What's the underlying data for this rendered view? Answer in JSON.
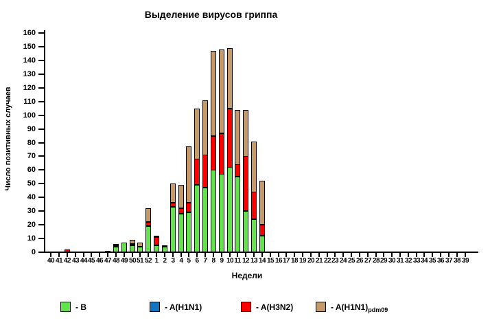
{
  "chart_data": {
    "type": "bar",
    "stacked": true,
    "title": "Выделение вирусов гриппа",
    "xlabel": "Недели",
    "ylabel": "Число позитивных случаев",
    "ylim": [
      0,
      160
    ],
    "ytick_step": 10,
    "grid": false,
    "legend_position": "bottom",
    "categories": [
      "40",
      "41",
      "42",
      "43",
      "44",
      "45",
      "46",
      "47",
      "48",
      "49",
      "50",
      "51",
      "52",
      "1",
      "2",
      "3",
      "4",
      "5",
      "6",
      "7",
      "8",
      "9",
      "10",
      "11",
      "12",
      "13",
      "14",
      "15",
      "16",
      "17",
      "18",
      "19",
      "20",
      "21",
      "22",
      "23",
      "24",
      "25",
      "26",
      "27",
      "28",
      "29",
      "30",
      "31",
      "32",
      "33",
      "34",
      "35",
      "36",
      "37",
      "38",
      "39"
    ],
    "series": [
      {
        "name": "B",
        "color": "#63E24C",
        "values": [
          0,
          0,
          0,
          0,
          0,
          0,
          0,
          1,
          4,
          7,
          5,
          4,
          19,
          5,
          4,
          33,
          28,
          29,
          49,
          47,
          60,
          57,
          62,
          55,
          30,
          24,
          12,
          0,
          0,
          0,
          0,
          0,
          0,
          0,
          0,
          0,
          0,
          0,
          0,
          0,
          0,
          0,
          0,
          0,
          0,
          0,
          0,
          0,
          0,
          0,
          0,
          0
        ]
      },
      {
        "name": "A(H1N1)",
        "color": "#1474BE",
        "values": [
          0,
          0,
          0,
          0,
          0,
          0,
          0,
          0,
          0,
          0,
          0,
          0,
          0,
          0,
          0,
          0,
          0,
          0,
          0,
          0,
          0,
          0,
          0,
          0,
          0,
          0,
          0,
          0,
          0,
          0,
          0,
          0,
          0,
          0,
          0,
          0,
          0,
          0,
          0,
          0,
          0,
          0,
          0,
          0,
          0,
          0,
          0,
          0,
          0,
          0,
          0,
          0
        ]
      },
      {
        "name": "A(H3N2)",
        "color": "#FF0000",
        "values": [
          0,
          0,
          2,
          0,
          0,
          0,
          0,
          0,
          1,
          0,
          1,
          0,
          3,
          6,
          1,
          3,
          4,
          7,
          19,
          24,
          25,
          30,
          43,
          9,
          40,
          20,
          8,
          0,
          0,
          0,
          0,
          0,
          0,
          0,
          0,
          0,
          0,
          0,
          0,
          0,
          0,
          0,
          0,
          0,
          0,
          0,
          0,
          0,
          0,
          0,
          0,
          0
        ]
      },
      {
        "name": "A(H1N1)pdm09",
        "color": "#C49A6B",
        "values": [
          0,
          0,
          0,
          0,
          0,
          0,
          0,
          0,
          1,
          0,
          3,
          3,
          10,
          1,
          0,
          14,
          17,
          41,
          37,
          40,
          62,
          61,
          44,
          40,
          34,
          37,
          32,
          0,
          0,
          0,
          0,
          0,
          0,
          0,
          0,
          0,
          0,
          0,
          0,
          0,
          0,
          0,
          0,
          0,
          0,
          0,
          0,
          0,
          0,
          0,
          0,
          0
        ]
      }
    ],
    "legend": [
      {
        "label": "- B",
        "sub": "",
        "x": 88
      },
      {
        "label": "- A(H1N1)",
        "sub": "",
        "x": 218
      },
      {
        "label": "- A(H3N2)",
        "sub": "",
        "x": 351
      },
      {
        "label": "- A(H1N1)",
        "sub": "pdm09",
        "x": 460
      }
    ]
  }
}
